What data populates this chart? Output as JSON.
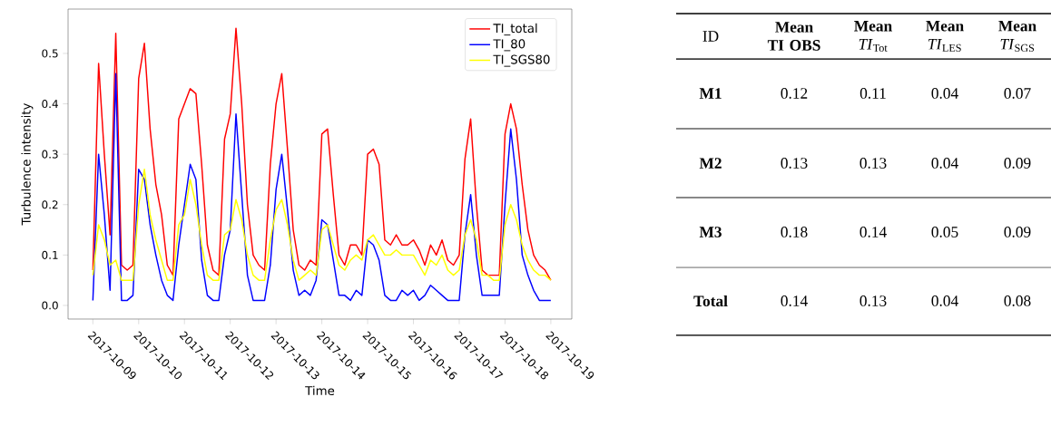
{
  "chart_data": [
    {
      "type": "line",
      "xlabel": "Time",
      "ylabel": "Turbulence intensity",
      "legend": "top right",
      "x": [
        "2017-10-09T00:00",
        "2017-10-09T03:00",
        "2017-10-09T06:00",
        "2017-10-09T09:00",
        "2017-10-09T12:00",
        "2017-10-09T15:00",
        "2017-10-09T18:00",
        "2017-10-09T21:00",
        "2017-10-10T00:00",
        "2017-10-10T03:00",
        "2017-10-10T06:00",
        "2017-10-10T09:00",
        "2017-10-10T12:00",
        "2017-10-10T15:00",
        "2017-10-10T18:00",
        "2017-10-10T21:00",
        "2017-10-11T00:00",
        "2017-10-11T03:00",
        "2017-10-11T06:00",
        "2017-10-11T09:00",
        "2017-10-11T12:00",
        "2017-10-11T15:00",
        "2017-10-11T18:00",
        "2017-10-11T21:00",
        "2017-10-12T00:00",
        "2017-10-12T03:00",
        "2017-10-12T06:00",
        "2017-10-12T09:00",
        "2017-10-12T12:00",
        "2017-10-12T15:00",
        "2017-10-12T18:00",
        "2017-10-12T21:00",
        "2017-10-13T00:00",
        "2017-10-13T03:00",
        "2017-10-13T06:00",
        "2017-10-13T09:00",
        "2017-10-13T12:00",
        "2017-10-13T15:00",
        "2017-10-13T18:00",
        "2017-10-13T21:00",
        "2017-10-14T00:00",
        "2017-10-14T03:00",
        "2017-10-14T06:00",
        "2017-10-14T09:00",
        "2017-10-14T12:00",
        "2017-10-14T15:00",
        "2017-10-14T18:00",
        "2017-10-14T21:00",
        "2017-10-15T00:00",
        "2017-10-15T03:00",
        "2017-10-15T06:00",
        "2017-10-15T09:00",
        "2017-10-15T12:00",
        "2017-10-15T15:00",
        "2017-10-15T18:00",
        "2017-10-15T21:00",
        "2017-10-16T00:00",
        "2017-10-16T03:00",
        "2017-10-16T06:00",
        "2017-10-16T09:00",
        "2017-10-16T12:00",
        "2017-10-16T15:00",
        "2017-10-16T18:00",
        "2017-10-16T21:00",
        "2017-10-17T00:00",
        "2017-10-17T03:00",
        "2017-10-17T06:00",
        "2017-10-17T09:00",
        "2017-10-17T12:00",
        "2017-10-17T15:00",
        "2017-10-17T18:00",
        "2017-10-17T21:00",
        "2017-10-18T00:00",
        "2017-10-18T03:00",
        "2017-10-18T06:00",
        "2017-10-18T09:00",
        "2017-10-18T12:00",
        "2017-10-18T15:00",
        "2017-10-18T18:00",
        "2017-10-18T21:00",
        "2017-10-19T00:00"
      ],
      "series": [
        {
          "name": "TI_total",
          "color": "#ff0000",
          "values": [
            0.07,
            0.48,
            0.3,
            0.14,
            0.54,
            0.08,
            0.07,
            0.08,
            0.45,
            0.52,
            0.35,
            0.24,
            0.18,
            0.08,
            0.06,
            0.37,
            0.4,
            0.43,
            0.42,
            0.28,
            0.12,
            0.07,
            0.06,
            0.33,
            0.38,
            0.55,
            0.4,
            0.2,
            0.1,
            0.08,
            0.07,
            0.28,
            0.4,
            0.46,
            0.31,
            0.15,
            0.08,
            0.07,
            0.09,
            0.08,
            0.34,
            0.35,
            0.22,
            0.1,
            0.08,
            0.12,
            0.12,
            0.1,
            0.3,
            0.31,
            0.28,
            0.13,
            0.12,
            0.14,
            0.12,
            0.12,
            0.13,
            0.11,
            0.08,
            0.12,
            0.1,
            0.13,
            0.09,
            0.08,
            0.1,
            0.29,
            0.37,
            0.2,
            0.07,
            0.06,
            0.06,
            0.06,
            0.34,
            0.4,
            0.35,
            0.24,
            0.15,
            0.1,
            0.08,
            0.07,
            0.05
          ]
        },
        {
          "name": "TI_80",
          "color": "#0000ff",
          "values": [
            0.01,
            0.3,
            0.18,
            0.03,
            0.46,
            0.01,
            0.01,
            0.02,
            0.27,
            0.25,
            0.16,
            0.1,
            0.05,
            0.02,
            0.01,
            0.12,
            0.2,
            0.28,
            0.25,
            0.09,
            0.02,
            0.01,
            0.01,
            0.1,
            0.15,
            0.38,
            0.22,
            0.06,
            0.01,
            0.01,
            0.01,
            0.08,
            0.23,
            0.3,
            0.19,
            0.07,
            0.02,
            0.03,
            0.02,
            0.05,
            0.17,
            0.16,
            0.09,
            0.02,
            0.02,
            0.01,
            0.03,
            0.02,
            0.13,
            0.12,
            0.09,
            0.02,
            0.01,
            0.01,
            0.03,
            0.02,
            0.03,
            0.01,
            0.02,
            0.04,
            0.03,
            0.02,
            0.01,
            0.01,
            0.01,
            0.14,
            0.22,
            0.1,
            0.02,
            0.02,
            0.02,
            0.02,
            0.2,
            0.35,
            0.25,
            0.1,
            0.06,
            0.03,
            0.01,
            0.01,
            0.01
          ]
        },
        {
          "name": "TI_SGS80",
          "color": "#ffff00",
          "values": [
            0.06,
            0.16,
            0.13,
            0.08,
            0.09,
            0.05,
            0.05,
            0.05,
            0.2,
            0.27,
            0.18,
            0.13,
            0.09,
            0.05,
            0.05,
            0.16,
            0.18,
            0.25,
            0.2,
            0.12,
            0.06,
            0.05,
            0.05,
            0.14,
            0.15,
            0.21,
            0.17,
            0.1,
            0.06,
            0.05,
            0.05,
            0.13,
            0.19,
            0.21,
            0.16,
            0.09,
            0.05,
            0.06,
            0.07,
            0.06,
            0.15,
            0.16,
            0.12,
            0.08,
            0.07,
            0.09,
            0.1,
            0.09,
            0.13,
            0.14,
            0.12,
            0.1,
            0.1,
            0.11,
            0.1,
            0.1,
            0.1,
            0.08,
            0.06,
            0.09,
            0.08,
            0.1,
            0.07,
            0.06,
            0.07,
            0.14,
            0.17,
            0.13,
            0.06,
            0.06,
            0.05,
            0.05,
            0.16,
            0.2,
            0.17,
            0.12,
            0.09,
            0.07,
            0.06,
            0.06,
            0.05
          ]
        }
      ],
      "xlim": [
        "2017-10-08T11:00",
        "2017-10-19T11:00"
      ],
      "xticks": [
        "2017-10-09",
        "2017-10-10",
        "2017-10-11",
        "2017-10-12",
        "2017-10-13",
        "2017-10-14",
        "2017-10-15",
        "2017-10-16",
        "2017-10-17",
        "2017-10-18",
        "2017-10-19"
      ],
      "ylim": [
        -0.027,
        0.588
      ],
      "yticks": [
        {
          "value": 0,
          "label": "0.0"
        },
        {
          "value": 0.1,
          "label": "0.1"
        },
        {
          "value": 0.2,
          "label": "0.2"
        },
        {
          "value": 0.3,
          "label": "0.3"
        },
        {
          "value": 0.4,
          "label": "0.4"
        },
        {
          "value": 0.5,
          "label": "0.5"
        }
      ]
    },
    {
      "type": "other",
      "ylabel": "ID",
      "categories": [
        "**Mean TI OBS**",
        "**Mean** *TI*$_{Tot}$",
        "**Mean** *TI*$_{LES}$",
        "**Mean** *TI*$_{SGS}$"
      ],
      "y_categories": [
        "M1",
        "M2",
        "M3",
        "Total"
      ],
      "cell_labels": [
        [
          "0.12",
          "0.11",
          "0.04",
          "0.07"
        ],
        [
          "0.13",
          "0.13",
          "0.04",
          "0.09"
        ],
        [
          "0.18",
          "0.14",
          "0.05",
          "0.09"
        ],
        [
          "0.14",
          "0.13",
          "0.04",
          "0.08"
        ]
      ],
      "data_labels": true
    }
  ]
}
